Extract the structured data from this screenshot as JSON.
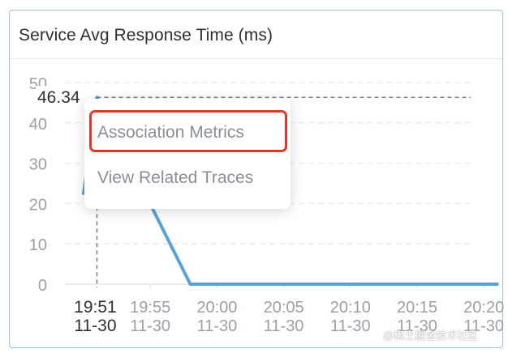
{
  "card": {
    "title": "Service Avg Response Time (ms)"
  },
  "chart_data": {
    "type": "line",
    "title": "Service Avg Response Time (ms)",
    "xlabel": "",
    "ylabel": "",
    "ylim": [
      0,
      50
    ],
    "yticks": [
      "0",
      "10",
      "20",
      "30",
      "40",
      "50"
    ],
    "xticks": [
      {
        "time": "19:55",
        "date": "11-30"
      },
      {
        "time": "20:00",
        "date": "11-30"
      },
      {
        "time": "20:05",
        "date": "11-30"
      },
      {
        "time": "20:10",
        "date": "11-30"
      },
      {
        "time": "20:15",
        "date": "11-30"
      },
      {
        "time": "20:20",
        "date": "11-30"
      }
    ],
    "series": [
      {
        "color": "#5aa3d8",
        "points": [
          {
            "x": "19:50",
            "y": 22.5
          },
          {
            "x": "19:51",
            "y": 46.34
          },
          {
            "x": "19:58",
            "y": 0
          },
          {
            "x": "20:21",
            "y": 0
          }
        ]
      }
    ],
    "grid": true,
    "crosshair": {
      "x_label": "19:51",
      "x_date": "11-30",
      "y_label": "46.34"
    }
  },
  "context_menu": {
    "items": [
      "Association Metrics",
      "View Related Traces"
    ]
  },
  "watermark": "@稀土掘金技术社区"
}
